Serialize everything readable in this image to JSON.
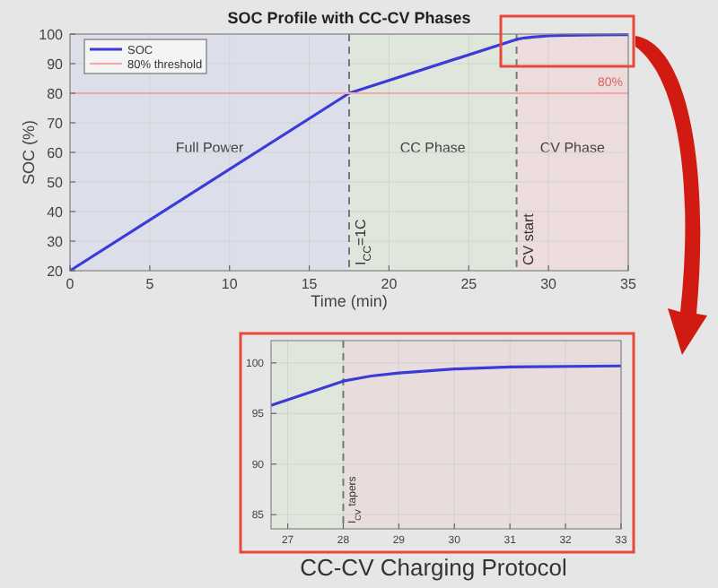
{
  "chart_data": [
    {
      "type": "line",
      "title": "SOC Profile with CC-CV Phases",
      "xlabel": "Time (min)",
      "ylabel": "SOC (%)",
      "series": [
        {
          "name": "SOC",
          "color": "#3b3bd8",
          "x": [
            0,
            17.5,
            28,
            28.5,
            29,
            30,
            31,
            33,
            35
          ],
          "values": [
            20,
            80,
            98.2,
            98.7,
            99,
            99.4,
            99.6,
            99.7,
            99.8
          ]
        },
        {
          "name": "80% threshold",
          "color": "#f2a8a8",
          "x": [
            0,
            35
          ],
          "values": [
            80,
            80
          ]
        }
      ],
      "xlim": [
        0,
        35
      ],
      "ylim": [
        20,
        100
      ],
      "xticks": [
        0,
        5,
        10,
        15,
        20,
        25,
        30,
        35
      ],
      "yticks": [
        20,
        30,
        40,
        50,
        60,
        70,
        80,
        90,
        100
      ],
      "grid": true,
      "legend": "top left",
      "ref_lines": [
        {
          "axis": "x",
          "value": 17.5,
          "color": "#777777",
          "line_style": "dashed"
        },
        {
          "axis": "x",
          "value": 28,
          "label": "CV start",
          "color": "#777777",
          "line_style": "dashed"
        }
      ],
      "bands": [
        {
          "axis": "x",
          "from": 0,
          "to": 17.5,
          "label": "Full Power",
          "color": "#dcdfea"
        },
        {
          "axis": "x",
          "from": 17.5,
          "to": 28,
          "label": "CC Phase",
          "color": "#dfe7dd"
        },
        {
          "axis": "x",
          "from": 28,
          "to": 35,
          "label": "CV Phase",
          "color": "#eddcdc"
        }
      ],
      "annotations": [
        {
          "text": "80%",
          "x": 35,
          "y": 80
        },
        {
          "text": "I$_{CC}$=1C",
          "x": 17.5,
          "y": 20
        }
      ]
    },
    {
      "type": "line",
      "series": [
        {
          "color": "#3b3bd8",
          "x": [
            26.7,
            28,
            28.5,
            29,
            30,
            31,
            33
          ],
          "values": [
            95.8,
            98.2,
            98.7,
            99,
            99.4,
            99.6,
            99.7
          ]
        }
      ],
      "xlim": [
        26.7,
        33
      ],
      "ylim": [
        83.6,
        102.2
      ],
      "xticks": [
        27,
        28,
        29,
        30,
        31,
        32,
        33
      ],
      "yticks": [
        85,
        90,
        95,
        100
      ],
      "grid": true,
      "ref_lines": [
        {
          "axis": "x",
          "value": 28,
          "label": "I$_{CV}$ tapers",
          "color": "#777777",
          "line_style": "dashed"
        }
      ],
      "bands": [
        {
          "axis": "x",
          "from": 26.7,
          "to": 28,
          "color": "#dfe7dd"
        },
        {
          "axis": "x",
          "from": 28,
          "to": 33,
          "color": "#e9dcdc"
        }
      ],
      "annotations": [
        "CC-CV Charging Protocol"
      ]
    }
  ]
}
